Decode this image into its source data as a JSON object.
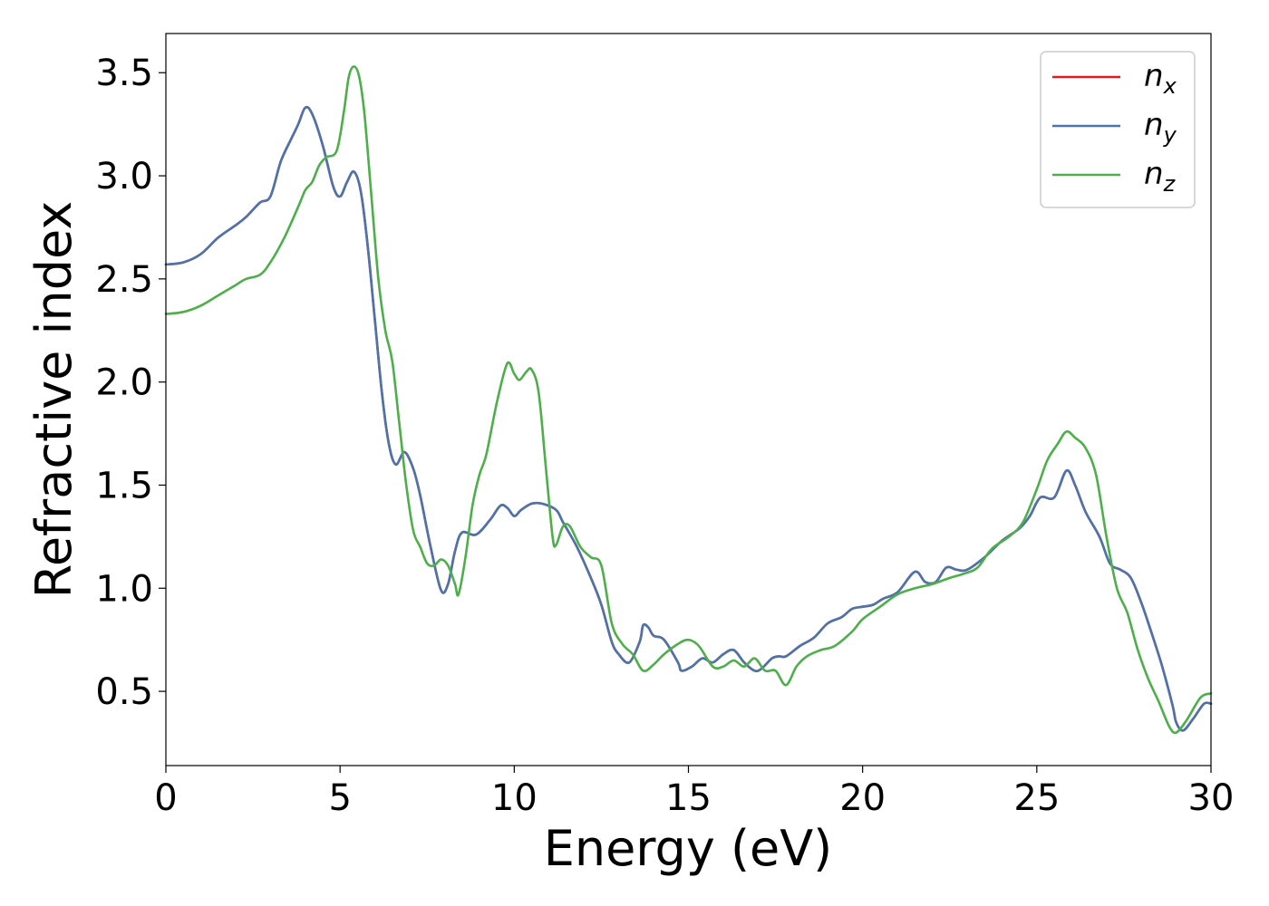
{
  "chart_data": {
    "type": "line",
    "title": "",
    "xlabel": "Energy (eV)",
    "ylabel": "Refractive index",
    "xlim": [
      0,
      30
    ],
    "ylim": [
      0.14,
      3.69
    ],
    "xticks": [
      "0",
      "5",
      "10",
      "15",
      "20",
      "25",
      "30"
    ],
    "yticks": [
      "0.5",
      "1.0",
      "1.5",
      "2.0",
      "2.5",
      "3.0",
      "3.5"
    ],
    "grid": false,
    "legend_position": "top-right",
    "series": [
      {
        "name": "n",
        "subscript": "x",
        "color": "#e41a1c",
        "points": [
          [
            0,
            2.57
          ],
          [
            0.5,
            2.58
          ],
          [
            1,
            2.62
          ],
          [
            1.5,
            2.7
          ],
          [
            2,
            2.76
          ],
          [
            2.3,
            2.8
          ],
          [
            2.7,
            2.87
          ],
          [
            3.0,
            2.9
          ],
          [
            3.3,
            3.07
          ],
          [
            3.6,
            3.18
          ],
          [
            3.8,
            3.25
          ],
          [
            4.0,
            3.33
          ],
          [
            4.2,
            3.3
          ],
          [
            4.5,
            3.15
          ],
          [
            4.8,
            2.95
          ],
          [
            5.0,
            2.9
          ],
          [
            5.2,
            2.97
          ],
          [
            5.4,
            3.02
          ],
          [
            5.6,
            2.92
          ],
          [
            5.8,
            2.65
          ],
          [
            6.0,
            2.3
          ],
          [
            6.2,
            1.95
          ],
          [
            6.4,
            1.7
          ],
          [
            6.6,
            1.6
          ],
          [
            6.85,
            1.66
          ],
          [
            7.1,
            1.58
          ],
          [
            7.3,
            1.45
          ],
          [
            7.6,
            1.2
          ],
          [
            7.9,
            0.99
          ],
          [
            8.1,
            1.02
          ],
          [
            8.3,
            1.18
          ],
          [
            8.5,
            1.27
          ],
          [
            8.9,
            1.26
          ],
          [
            9.3,
            1.33
          ],
          [
            9.6,
            1.4
          ],
          [
            9.8,
            1.39
          ],
          [
            10.0,
            1.35
          ],
          [
            10.2,
            1.38
          ],
          [
            10.5,
            1.41
          ],
          [
            10.8,
            1.41
          ],
          [
            11.2,
            1.38
          ],
          [
            11.4,
            1.32
          ],
          [
            11.8,
            1.2
          ],
          [
            12.2,
            1.05
          ],
          [
            12.5,
            0.92
          ],
          [
            12.8,
            0.74
          ],
          [
            13.0,
            0.68
          ],
          [
            13.3,
            0.64
          ],
          [
            13.6,
            0.74
          ],
          [
            13.7,
            0.82
          ],
          [
            13.85,
            0.81
          ],
          [
            14.0,
            0.77
          ],
          [
            14.3,
            0.75
          ],
          [
            14.7,
            0.64
          ],
          [
            14.8,
            0.6
          ],
          [
            15.1,
            0.62
          ],
          [
            15.4,
            0.66
          ],
          [
            15.7,
            0.64
          ],
          [
            16.0,
            0.68
          ],
          [
            16.3,
            0.7
          ],
          [
            16.6,
            0.64
          ],
          [
            16.9,
            0.6
          ],
          [
            17.1,
            0.61
          ],
          [
            17.4,
            0.66
          ],
          [
            17.6,
            0.67
          ],
          [
            17.8,
            0.67
          ],
          [
            18.2,
            0.72
          ],
          [
            18.6,
            0.76
          ],
          [
            19.0,
            0.83
          ],
          [
            19.4,
            0.86
          ],
          [
            19.7,
            0.9
          ],
          [
            20.0,
            0.91
          ],
          [
            20.3,
            0.92
          ],
          [
            20.6,
            0.95
          ],
          [
            21.0,
            0.98
          ],
          [
            21.5,
            1.08
          ],
          [
            21.8,
            1.03
          ],
          [
            22.1,
            1.03
          ],
          [
            22.4,
            1.1
          ],
          [
            22.7,
            1.09
          ],
          [
            23.0,
            1.09
          ],
          [
            23.5,
            1.15
          ],
          [
            24.0,
            1.23
          ],
          [
            24.5,
            1.29
          ],
          [
            24.8,
            1.35
          ],
          [
            25.1,
            1.44
          ],
          [
            25.5,
            1.44
          ],
          [
            25.85,
            1.57
          ],
          [
            26.1,
            1.5
          ],
          [
            26.4,
            1.37
          ],
          [
            26.8,
            1.25
          ],
          [
            27.1,
            1.12
          ],
          [
            27.4,
            1.09
          ],
          [
            27.7,
            1.05
          ],
          [
            28.0,
            0.93
          ],
          [
            28.3,
            0.78
          ],
          [
            28.6,
            0.62
          ],
          [
            28.9,
            0.43
          ],
          [
            29.0,
            0.35
          ],
          [
            29.2,
            0.31
          ],
          [
            29.5,
            0.37
          ],
          [
            29.8,
            0.44
          ],
          [
            30.0,
            0.44
          ]
        ]
      },
      {
        "name": "n",
        "subscript": "y",
        "color": "#4a74ac",
        "points": [
          [
            0,
            2.57
          ],
          [
            0.5,
            2.58
          ],
          [
            1,
            2.62
          ],
          [
            1.5,
            2.7
          ],
          [
            2,
            2.76
          ],
          [
            2.3,
            2.8
          ],
          [
            2.7,
            2.87
          ],
          [
            3.0,
            2.9
          ],
          [
            3.3,
            3.07
          ],
          [
            3.6,
            3.18
          ],
          [
            3.8,
            3.25
          ],
          [
            4.0,
            3.33
          ],
          [
            4.2,
            3.3
          ],
          [
            4.5,
            3.15
          ],
          [
            4.8,
            2.95
          ],
          [
            5.0,
            2.9
          ],
          [
            5.2,
            2.97
          ],
          [
            5.4,
            3.02
          ],
          [
            5.6,
            2.92
          ],
          [
            5.8,
            2.65
          ],
          [
            6.0,
            2.3
          ],
          [
            6.2,
            1.95
          ],
          [
            6.4,
            1.7
          ],
          [
            6.6,
            1.6
          ],
          [
            6.85,
            1.66
          ],
          [
            7.1,
            1.58
          ],
          [
            7.3,
            1.45
          ],
          [
            7.6,
            1.2
          ],
          [
            7.9,
            0.99
          ],
          [
            8.1,
            1.02
          ],
          [
            8.3,
            1.18
          ],
          [
            8.5,
            1.27
          ],
          [
            8.9,
            1.26
          ],
          [
            9.3,
            1.33
          ],
          [
            9.6,
            1.4
          ],
          [
            9.8,
            1.39
          ],
          [
            10.0,
            1.35
          ],
          [
            10.2,
            1.38
          ],
          [
            10.5,
            1.41
          ],
          [
            10.8,
            1.41
          ],
          [
            11.2,
            1.38
          ],
          [
            11.4,
            1.32
          ],
          [
            11.8,
            1.2
          ],
          [
            12.2,
            1.05
          ],
          [
            12.5,
            0.92
          ],
          [
            12.8,
            0.74
          ],
          [
            13.0,
            0.68
          ],
          [
            13.3,
            0.64
          ],
          [
            13.6,
            0.74
          ],
          [
            13.7,
            0.82
          ],
          [
            13.85,
            0.81
          ],
          [
            14.0,
            0.77
          ],
          [
            14.3,
            0.75
          ],
          [
            14.7,
            0.64
          ],
          [
            14.8,
            0.6
          ],
          [
            15.1,
            0.62
          ],
          [
            15.4,
            0.66
          ],
          [
            15.7,
            0.64
          ],
          [
            16.0,
            0.68
          ],
          [
            16.3,
            0.7
          ],
          [
            16.6,
            0.64
          ],
          [
            16.9,
            0.6
          ],
          [
            17.1,
            0.61
          ],
          [
            17.4,
            0.66
          ],
          [
            17.6,
            0.67
          ],
          [
            17.8,
            0.67
          ],
          [
            18.2,
            0.72
          ],
          [
            18.6,
            0.76
          ],
          [
            19.0,
            0.83
          ],
          [
            19.4,
            0.86
          ],
          [
            19.7,
            0.9
          ],
          [
            20.0,
            0.91
          ],
          [
            20.3,
            0.92
          ],
          [
            20.6,
            0.95
          ],
          [
            21.0,
            0.98
          ],
          [
            21.5,
            1.08
          ],
          [
            21.8,
            1.03
          ],
          [
            22.1,
            1.03
          ],
          [
            22.4,
            1.1
          ],
          [
            22.7,
            1.09
          ],
          [
            23.0,
            1.09
          ],
          [
            23.5,
            1.15
          ],
          [
            24.0,
            1.23
          ],
          [
            24.5,
            1.29
          ],
          [
            24.8,
            1.35
          ],
          [
            25.1,
            1.44
          ],
          [
            25.5,
            1.44
          ],
          [
            25.85,
            1.57
          ],
          [
            26.1,
            1.5
          ],
          [
            26.4,
            1.37
          ],
          [
            26.8,
            1.25
          ],
          [
            27.1,
            1.12
          ],
          [
            27.4,
            1.09
          ],
          [
            27.7,
            1.05
          ],
          [
            28.0,
            0.93
          ],
          [
            28.3,
            0.78
          ],
          [
            28.6,
            0.62
          ],
          [
            28.9,
            0.43
          ],
          [
            29.0,
            0.35
          ],
          [
            29.2,
            0.31
          ],
          [
            29.5,
            0.37
          ],
          [
            29.8,
            0.44
          ],
          [
            30.0,
            0.44
          ]
        ]
      },
      {
        "name": "n",
        "subscript": "z",
        "color": "#4daf4a",
        "points": [
          [
            0,
            2.33
          ],
          [
            0.5,
            2.34
          ],
          [
            1,
            2.37
          ],
          [
            1.5,
            2.42
          ],
          [
            2,
            2.47
          ],
          [
            2.3,
            2.5
          ],
          [
            2.7,
            2.52
          ],
          [
            3.0,
            2.58
          ],
          [
            3.4,
            2.7
          ],
          [
            3.8,
            2.85
          ],
          [
            4.0,
            2.93
          ],
          [
            4.2,
            2.97
          ],
          [
            4.4,
            3.05
          ],
          [
            4.6,
            3.09
          ],
          [
            4.9,
            3.12
          ],
          [
            5.1,
            3.3
          ],
          [
            5.25,
            3.48
          ],
          [
            5.4,
            3.53
          ],
          [
            5.55,
            3.48
          ],
          [
            5.7,
            3.3
          ],
          [
            5.9,
            2.9
          ],
          [
            6.1,
            2.5
          ],
          [
            6.3,
            2.25
          ],
          [
            6.5,
            2.1
          ],
          [
            6.7,
            1.8
          ],
          [
            6.9,
            1.5
          ],
          [
            7.1,
            1.28
          ],
          [
            7.3,
            1.2
          ],
          [
            7.5,
            1.12
          ],
          [
            7.7,
            1.11
          ],
          [
            7.9,
            1.14
          ],
          [
            8.1,
            1.11
          ],
          [
            8.3,
            1.02
          ],
          [
            8.4,
            0.97
          ],
          [
            8.6,
            1.15
          ],
          [
            8.8,
            1.4
          ],
          [
            9.0,
            1.55
          ],
          [
            9.2,
            1.65
          ],
          [
            9.5,
            1.9
          ],
          [
            9.8,
            2.09
          ],
          [
            10.0,
            2.04
          ],
          [
            10.15,
            2.01
          ],
          [
            10.35,
            2.05
          ],
          [
            10.5,
            2.06
          ],
          [
            10.7,
            1.95
          ],
          [
            10.9,
            1.6
          ],
          [
            11.1,
            1.25
          ],
          [
            11.2,
            1.21
          ],
          [
            11.4,
            1.3
          ],
          [
            11.6,
            1.3
          ],
          [
            11.9,
            1.2
          ],
          [
            12.2,
            1.15
          ],
          [
            12.5,
            1.11
          ],
          [
            12.8,
            0.83
          ],
          [
            13.1,
            0.73
          ],
          [
            13.4,
            0.68
          ],
          [
            13.7,
            0.6
          ],
          [
            14.0,
            0.63
          ],
          [
            14.3,
            0.68
          ],
          [
            14.7,
            0.73
          ],
          [
            15.0,
            0.75
          ],
          [
            15.3,
            0.72
          ],
          [
            15.7,
            0.62
          ],
          [
            16.0,
            0.62
          ],
          [
            16.3,
            0.65
          ],
          [
            16.6,
            0.62
          ],
          [
            16.9,
            0.66
          ],
          [
            17.2,
            0.6
          ],
          [
            17.5,
            0.6
          ],
          [
            17.8,
            0.53
          ],
          [
            18.1,
            0.62
          ],
          [
            18.4,
            0.67
          ],
          [
            18.8,
            0.7
          ],
          [
            19.2,
            0.72
          ],
          [
            19.7,
            0.79
          ],
          [
            20.0,
            0.85
          ],
          [
            20.5,
            0.91
          ],
          [
            21.0,
            0.97
          ],
          [
            21.5,
            1.0
          ],
          [
            22.0,
            1.02
          ],
          [
            22.5,
            1.05
          ],
          [
            22.9,
            1.07
          ],
          [
            23.3,
            1.1
          ],
          [
            23.7,
            1.19
          ],
          [
            24.2,
            1.25
          ],
          [
            24.6,
            1.32
          ],
          [
            25.0,
            1.48
          ],
          [
            25.3,
            1.62
          ],
          [
            25.6,
            1.7
          ],
          [
            25.85,
            1.76
          ],
          [
            26.1,
            1.73
          ],
          [
            26.4,
            1.68
          ],
          [
            26.7,
            1.55
          ],
          [
            27.0,
            1.25
          ],
          [
            27.3,
            1.0
          ],
          [
            27.6,
            0.88
          ],
          [
            27.9,
            0.7
          ],
          [
            28.2,
            0.56
          ],
          [
            28.5,
            0.45
          ],
          [
            28.8,
            0.33
          ],
          [
            29.0,
            0.3
          ],
          [
            29.3,
            0.36
          ],
          [
            29.7,
            0.47
          ],
          [
            30.0,
            0.49
          ]
        ]
      }
    ]
  }
}
